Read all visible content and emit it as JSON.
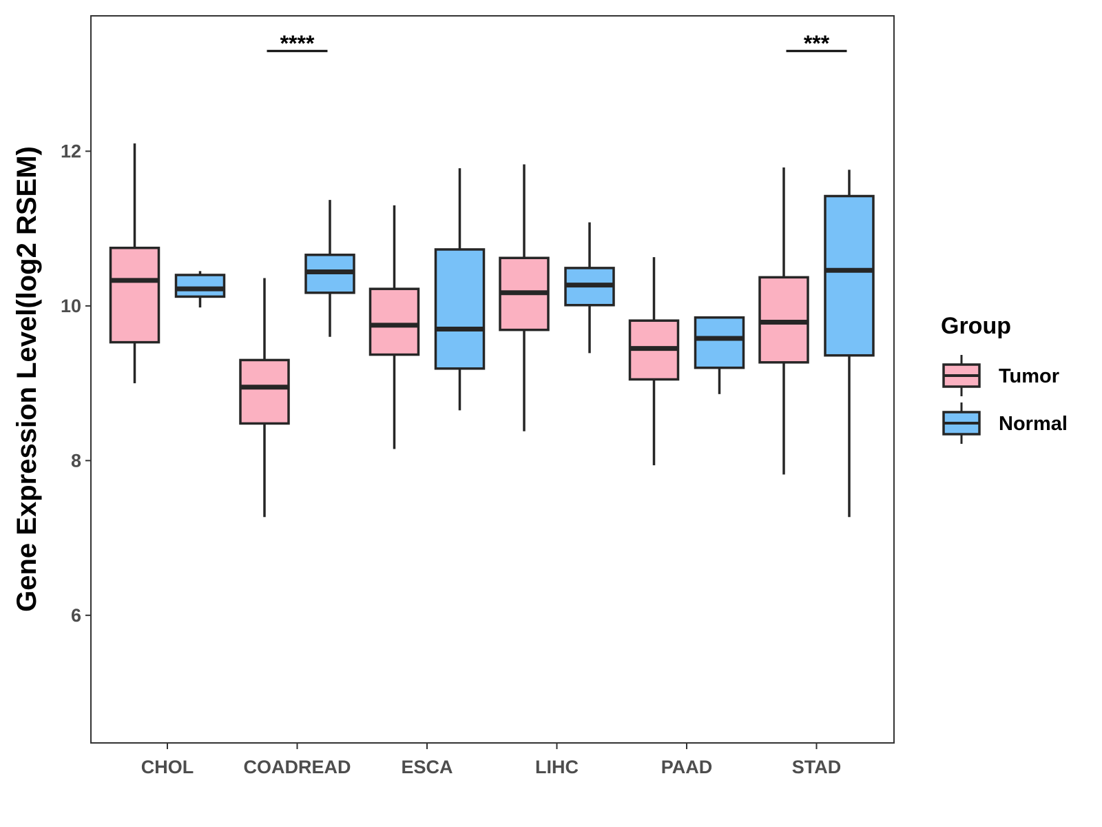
{
  "chart_data": {
    "type": "box",
    "title": "",
    "xlabel": "",
    "ylabel": "Gene Expression Level(log2 RSEM)",
    "ylim": [
      4.35,
      13.75
    ],
    "yticks": [
      6,
      8,
      10,
      12
    ],
    "categories": [
      "CHOL",
      "COADREAD",
      "ESCA",
      "LIHC",
      "PAAD",
      "STAD"
    ],
    "legend": {
      "title": "Group",
      "position": "right",
      "items": [
        {
          "name": "Tumor",
          "color": "#FBB1C1"
        },
        {
          "name": "Normal",
          "color": "#78C1F8"
        }
      ]
    },
    "series": [
      {
        "name": "Tumor",
        "color": "#FBB1C1",
        "boxes": [
          {
            "min": 9.0,
            "q1": 9.53,
            "median": 10.33,
            "q3": 10.75,
            "max": 12.1
          },
          {
            "min": 7.27,
            "q1": 8.48,
            "median": 8.95,
            "q3": 9.3,
            "max": 10.36
          },
          {
            "min": 8.15,
            "q1": 9.37,
            "median": 9.75,
            "q3": 10.22,
            "max": 11.3
          },
          {
            "min": 8.38,
            "q1": 9.69,
            "median": 10.17,
            "q3": 10.62,
            "max": 11.83
          },
          {
            "min": 7.94,
            "q1": 9.05,
            "median": 9.45,
            "q3": 9.81,
            "max": 10.63
          },
          {
            "min": 7.82,
            "q1": 9.27,
            "median": 9.79,
            "q3": 10.37,
            "max": 11.79
          }
        ]
      },
      {
        "name": "Normal",
        "color": "#78C1F8",
        "boxes": [
          {
            "min": 9.98,
            "q1": 10.12,
            "median": 10.22,
            "q3": 10.4,
            "max": 10.45
          },
          {
            "min": 9.6,
            "q1": 10.17,
            "median": 10.44,
            "q3": 10.66,
            "max": 11.37
          },
          {
            "min": 8.65,
            "q1": 9.19,
            "median": 9.7,
            "q3": 10.73,
            "max": 11.78
          },
          {
            "min": 9.39,
            "q1": 10.01,
            "median": 10.27,
            "q3": 10.49,
            "max": 11.08
          },
          {
            "min": 8.86,
            "q1": 9.2,
            "median": 9.58,
            "q3": 9.85,
            "max": 9.85
          },
          {
            "min": 7.27,
            "q1": 9.36,
            "median": 10.46,
            "q3": 11.42,
            "max": 11.76
          }
        ]
      }
    ],
    "annotations": [
      {
        "category": "COADREAD",
        "label": "****"
      },
      {
        "category": "STAD",
        "label": "***"
      }
    ]
  }
}
